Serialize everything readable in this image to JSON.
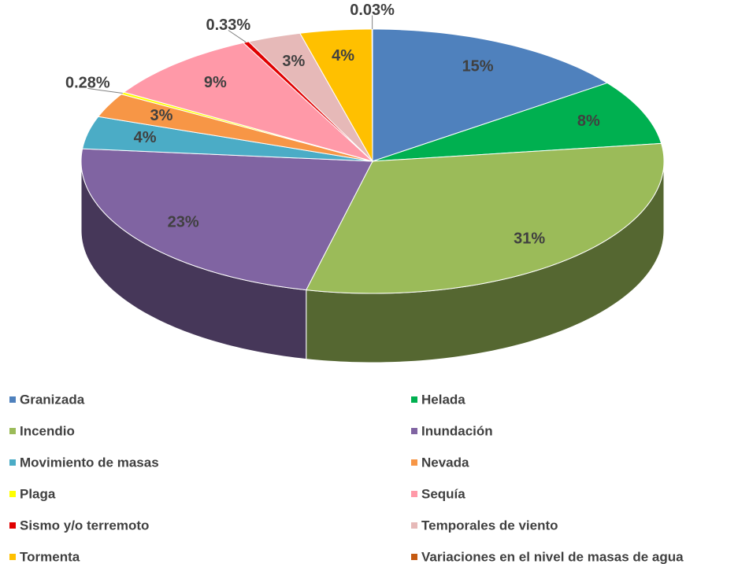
{
  "chart_data": {
    "type": "pie",
    "categories": [
      "Granizada",
      "Helada",
      "Incendio",
      "Inundación",
      "Movimiento de masas",
      "Nevada",
      "Plaga",
      "Sequía",
      "Sismo y/o terremoto",
      "Temporales de viento",
      "Tormenta",
      "Variaciones en el nivel de masas de agua"
    ],
    "values": [
      15,
      8,
      31,
      23,
      4,
      3,
      0.28,
      9,
      0.33,
      3,
      4,
      0.03
    ],
    "value_labels": [
      "15%",
      "8%",
      "31%",
      "23%",
      "4%",
      "3%",
      "0.28%",
      "9%",
      "0.33%",
      "3%",
      "4%",
      "0.03%"
    ],
    "colors": [
      "#4f81bd",
      "#00b050",
      "#9bbb59",
      "#8064a2",
      "#4bacc6",
      "#f79646",
      "#ffff00",
      "#ff99a8",
      "#e00000",
      "#e6b9b8",
      "#ffc000",
      "#c55a11"
    ],
    "legend": "bottom"
  }
}
